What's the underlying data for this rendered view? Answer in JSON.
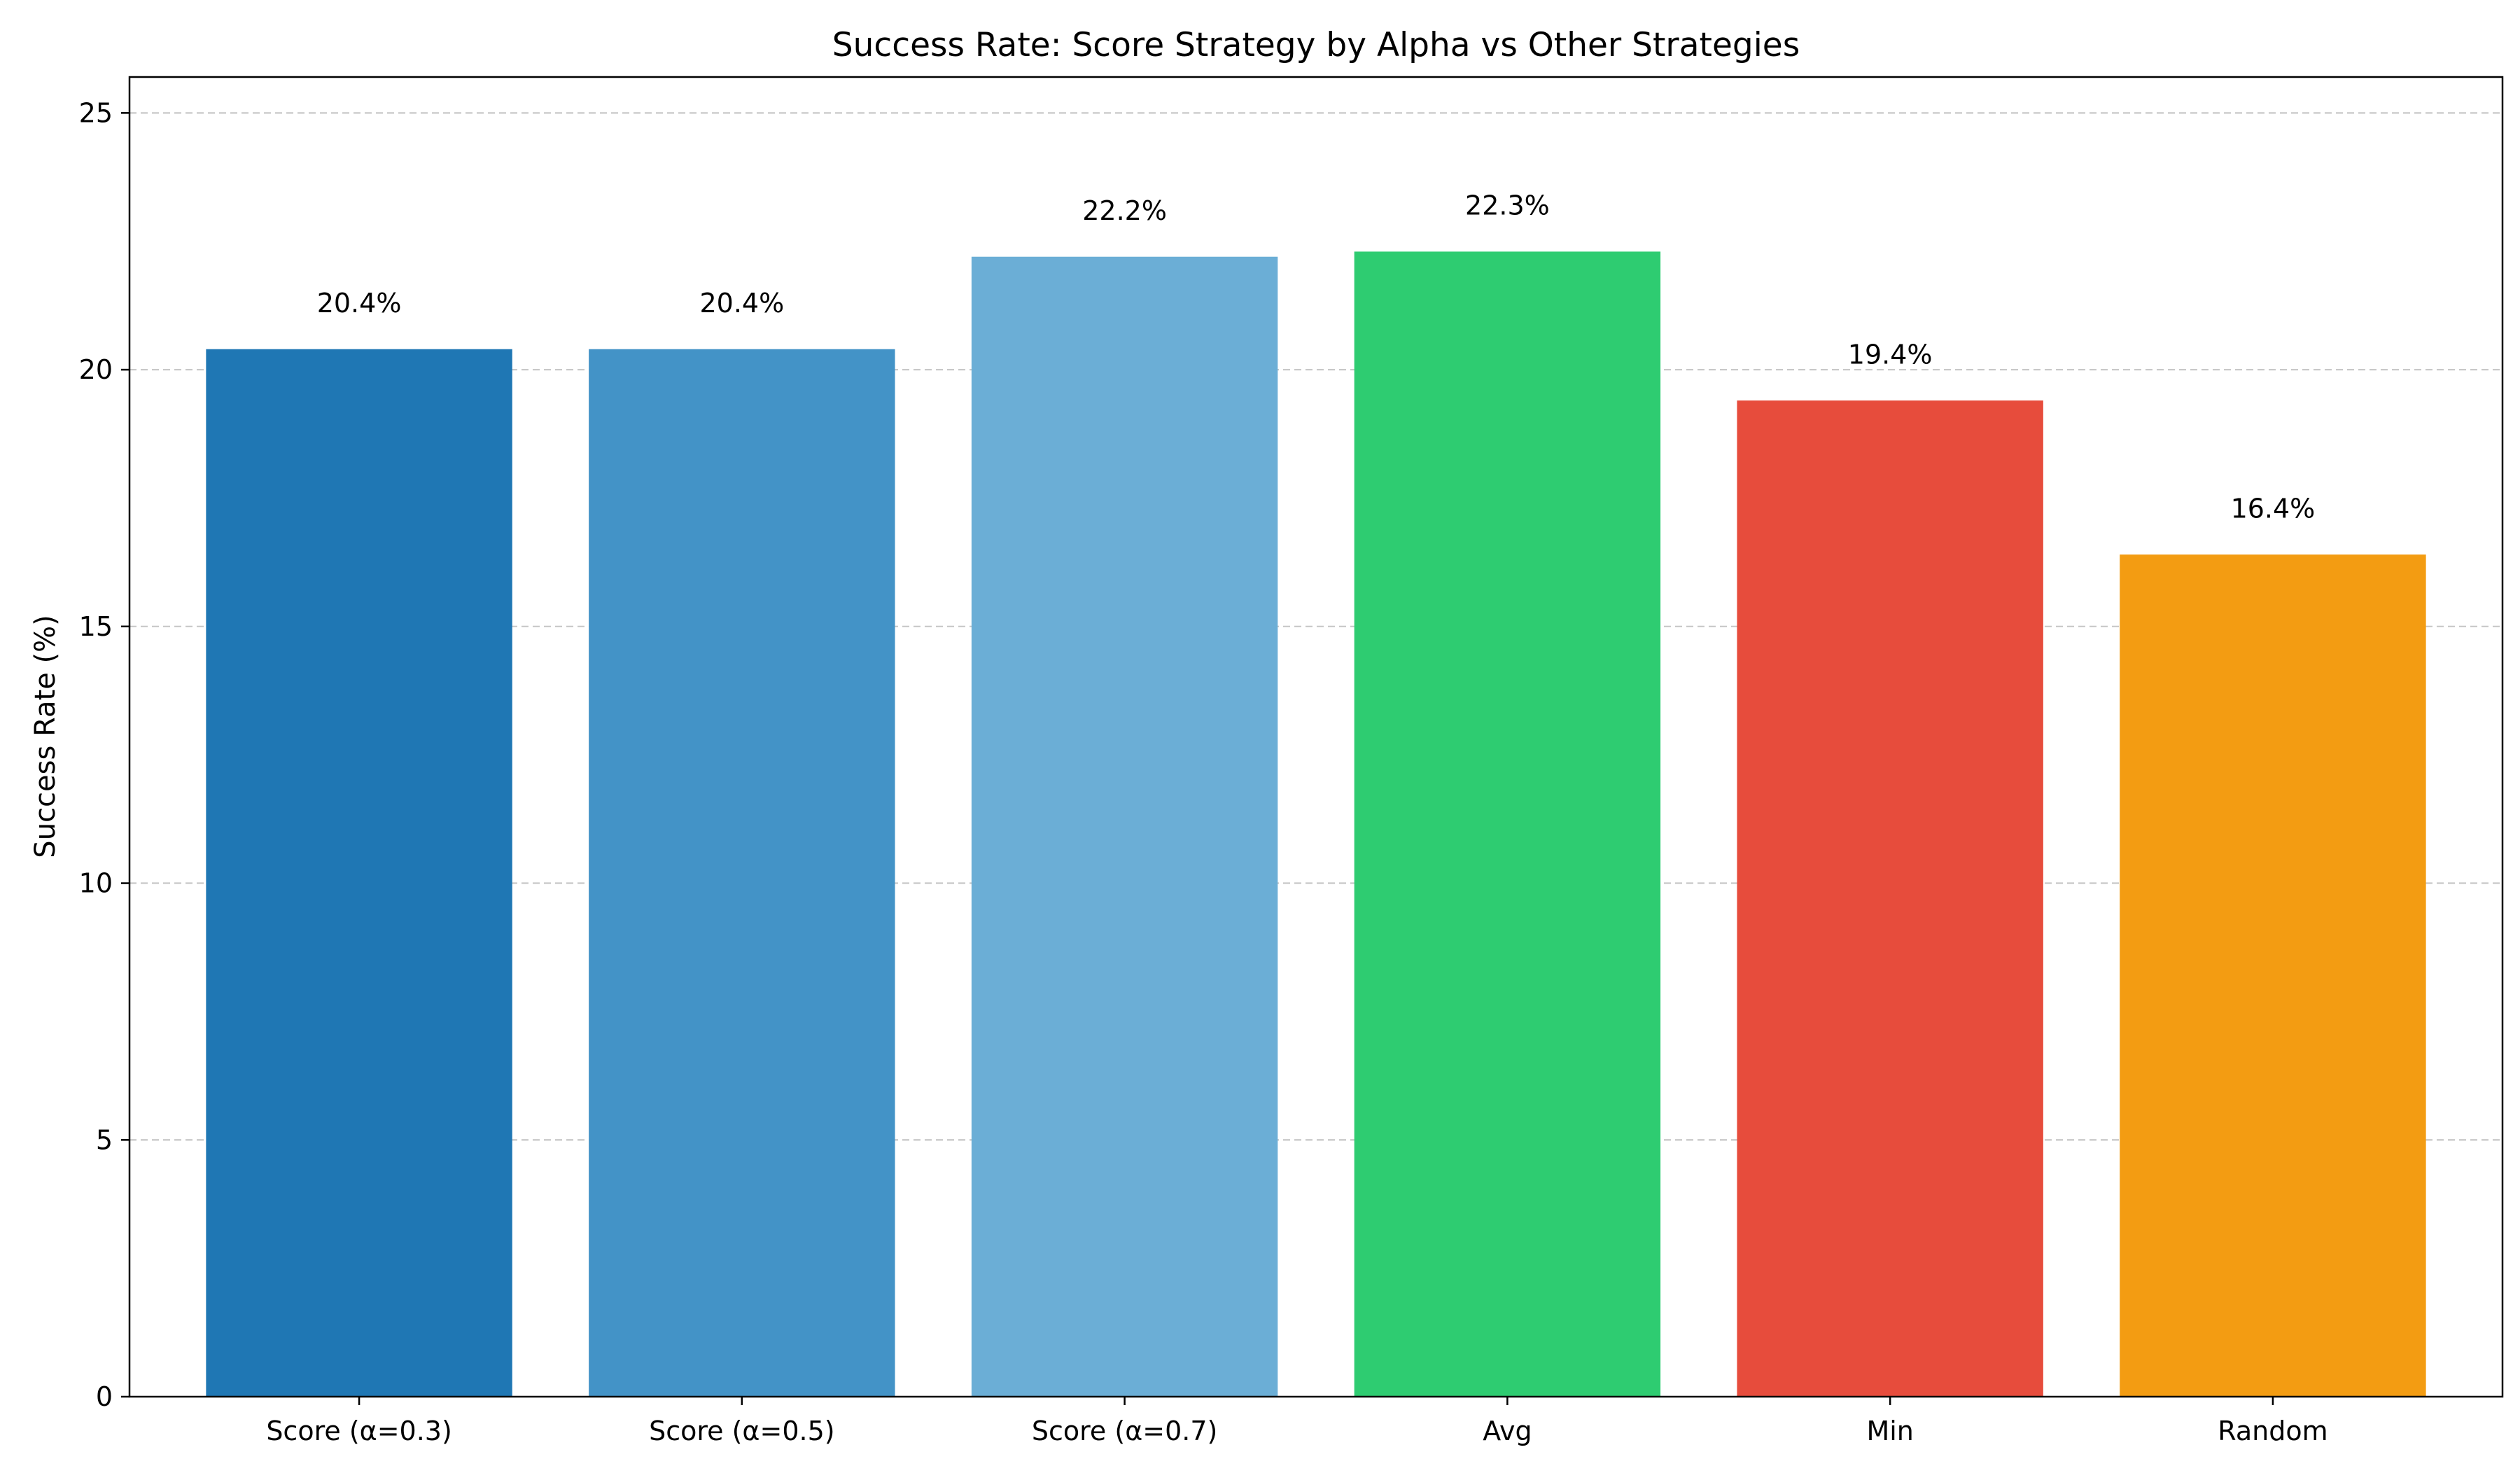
{
  "chart_data": {
    "type": "bar",
    "title": "Success Rate: Score Strategy by Alpha vs Other Strategies",
    "xlabel": "",
    "ylabel": "Success Rate (%)",
    "ylim": [
      0,
      25.7
    ],
    "yticks": [
      0,
      5,
      10,
      15,
      20,
      25
    ],
    "grid": "y-dashed",
    "categories": [
      "Score (α=0.3)",
      "Score (α=0.5)",
      "Score (α=0.7)",
      "Avg",
      "Min",
      "Random"
    ],
    "values": [
      20.4,
      20.4,
      22.2,
      22.3,
      19.4,
      16.4
    ],
    "value_labels": [
      "20.4%",
      "20.4%",
      "22.2%",
      "22.3%",
      "19.4%",
      "16.4%"
    ],
    "colors": [
      "#1f77b4",
      "#4393c7",
      "#6baed6",
      "#2ecc71",
      "#e74c3c",
      "#f39c12"
    ]
  }
}
